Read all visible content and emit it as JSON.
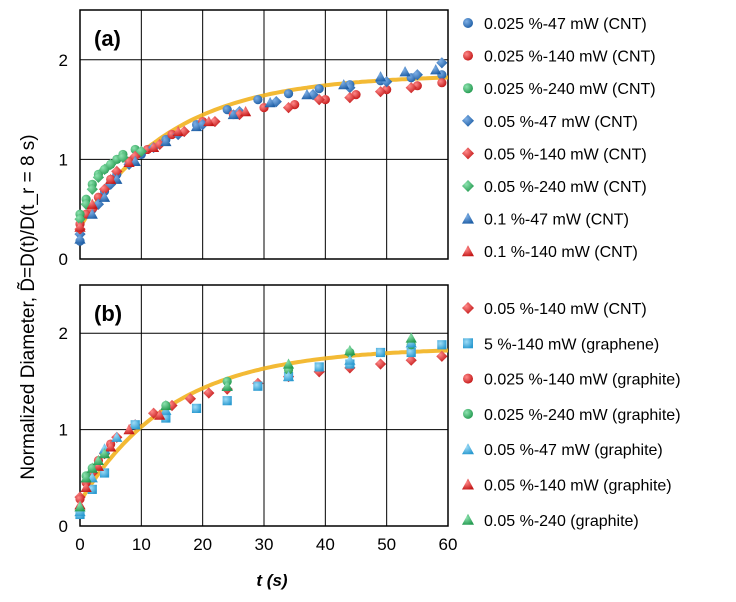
{
  "y_axis_title": "Normalized Diameter, D̃=D(t)/D(t_r = 8 s)",
  "x_axis_title": "t (s)",
  "colors": {
    "blue": "#1f5fa6",
    "red": "#d42020",
    "green": "#2fae5f",
    "cyan": "#33a8de",
    "fit_line": "#f2b21f",
    "grid": "#000000"
  },
  "chart_data": [
    {
      "type": "scatter",
      "panel_label": "(a)",
      "xlabel": "t (s)",
      "ylabel": "Normalized Diameter",
      "xlim": [
        0,
        60
      ],
      "ylim": [
        0,
        2.5
      ],
      "x_ticks": [
        0,
        10,
        20,
        30,
        40,
        50,
        60
      ],
      "y_ticks": [
        0,
        1,
        2
      ],
      "grid": true,
      "legend_position": "right",
      "fit": {
        "name": "fit",
        "color": "#f2b21f",
        "a": 1.85,
        "b": 1.53,
        "tau": 15
      },
      "series": [
        {
          "name": "0.025 %-47 mW (CNT)",
          "marker": "circle",
          "color": "#1f5fa6",
          "x": [
            0,
            2,
            4,
            6,
            8,
            10,
            14,
            19,
            24,
            29,
            34,
            39,
            44,
            49,
            54,
            59
          ],
          "y": [
            0.18,
            0.5,
            0.68,
            0.85,
            0.97,
            1.05,
            1.2,
            1.35,
            1.5,
            1.6,
            1.66,
            1.71,
            1.75,
            1.79,
            1.82,
            1.85
          ]
        },
        {
          "name": "0.025 %-140 mW (CNT)",
          "marker": "circle",
          "color": "#d42020",
          "x": [
            0,
            1,
            3,
            5,
            8,
            11,
            15,
            20,
            25,
            30,
            35,
            40,
            45,
            50,
            55,
            59
          ],
          "y": [
            0.35,
            0.45,
            0.62,
            0.8,
            0.98,
            1.1,
            1.25,
            1.38,
            1.45,
            1.52,
            1.55,
            1.6,
            1.65,
            1.7,
            1.74,
            1.77
          ]
        },
        {
          "name": "0.025 %-240 mW (CNT)",
          "marker": "circle",
          "color": "#2fae5f",
          "x": [
            0,
            1,
            2,
            3,
            4,
            5,
            6,
            7,
            9
          ],
          "y": [
            0.45,
            0.6,
            0.75,
            0.85,
            0.9,
            0.95,
            1.0,
            1.05,
            1.1
          ]
        },
        {
          "name": "0.05 %-47 mW (CNT)",
          "marker": "diamond",
          "color": "#1f5fa6",
          "x": [
            0,
            3,
            5,
            8,
            12,
            16,
            20,
            26,
            32,
            38,
            44,
            50,
            55,
            59
          ],
          "y": [
            0.25,
            0.55,
            0.75,
            0.95,
            1.12,
            1.25,
            1.35,
            1.48,
            1.58,
            1.65,
            1.72,
            1.78,
            1.85,
            1.97
          ]
        },
        {
          "name": "0.05 %-140 mW (CNT)",
          "marker": "diamond",
          "color": "#d42020",
          "x": [
            0,
            2,
            4,
            6,
            9,
            13,
            17,
            22,
            26,
            34,
            39,
            44,
            49,
            54
          ],
          "y": [
            0.3,
            0.5,
            0.7,
            0.88,
            1.03,
            1.15,
            1.28,
            1.38,
            1.45,
            1.52,
            1.6,
            1.62,
            1.68,
            1.72
          ]
        },
        {
          "name": "0.05 %-240 mW (CNT)",
          "marker": "diamond",
          "color": "#2fae5f",
          "x": [
            0,
            1,
            2,
            3,
            4,
            5,
            7,
            10
          ],
          "y": [
            0.4,
            0.55,
            0.7,
            0.82,
            0.9,
            0.95,
            1.02,
            1.08
          ]
        },
        {
          "name": "0.1 %-47 mW (CNT)",
          "marker": "triangle",
          "color": "#1f5fa6",
          "x": [
            0,
            2,
            4,
            6,
            9,
            14,
            19,
            25,
            31,
            37,
            43,
            49,
            53,
            58
          ],
          "y": [
            0.2,
            0.45,
            0.62,
            0.8,
            0.98,
            1.18,
            1.33,
            1.45,
            1.57,
            1.65,
            1.75,
            1.83,
            1.88,
            1.9
          ]
        },
        {
          "name": "0.1 %-140 mW (CNT)",
          "marker": "triangle",
          "color": "#d42020",
          "x": [
            0,
            2,
            5,
            8,
            12,
            16,
            21,
            27
          ],
          "y": [
            0.32,
            0.55,
            0.8,
            0.97,
            1.12,
            1.28,
            1.38,
            1.48
          ]
        }
      ]
    },
    {
      "type": "scatter",
      "panel_label": "(b)",
      "xlabel": "t (s)",
      "ylabel": "Normalized Diameter",
      "xlim": [
        0,
        60
      ],
      "ylim": [
        0,
        2.5
      ],
      "x_ticks": [
        0,
        10,
        20,
        30,
        40,
        50,
        60
      ],
      "y_ticks": [
        0,
        1,
        2
      ],
      "grid": true,
      "legend_position": "right",
      "fit": {
        "name": "fit",
        "color": "#f2b21f",
        "a": 1.85,
        "b": 1.6,
        "tau": 15
      },
      "series": [
        {
          "name": "0.05 %-140 mW (CNT)",
          "marker": "diamond",
          "color": "#d42020",
          "x": [
            0,
            2,
            4,
            6,
            9,
            12,
            15,
            18,
            21,
            24,
            29,
            34,
            39,
            44,
            49,
            54,
            59
          ],
          "y": [
            0.3,
            0.55,
            0.75,
            0.92,
            1.05,
            1.17,
            1.25,
            1.32,
            1.38,
            1.42,
            1.48,
            1.55,
            1.6,
            1.64,
            1.68,
            1.72,
            1.76
          ]
        },
        {
          "name": "5 %-140 mW (graphene)",
          "marker": "square",
          "color": "#33a8de",
          "x": [
            0,
            2,
            4,
            9,
            14,
            19,
            24,
            29,
            34,
            39,
            44,
            49,
            54,
            59
          ],
          "y": [
            0.12,
            0.38,
            0.55,
            1.05,
            1.12,
            1.22,
            1.3,
            1.45,
            1.55,
            1.65,
            1.68,
            1.8,
            1.8,
            1.88
          ]
        },
        {
          "name": "0.025 %-140 mW (graphite)",
          "marker": "circle",
          "color": "#d42020",
          "x": [
            0,
            1,
            3,
            5
          ],
          "y": [
            0.28,
            0.45,
            0.68,
            0.85
          ]
        },
        {
          "name": "0.025 %-240 mW (graphite)",
          "marker": "circle",
          "color": "#2fae5f",
          "x": [
            1,
            2,
            4,
            14,
            24,
            34,
            44,
            54
          ],
          "y": [
            0.52,
            0.6,
            0.75,
            1.25,
            1.5,
            1.62,
            1.8,
            1.88
          ]
        },
        {
          "name": "0.05 %-47 mW (graphite)",
          "marker": "triangle",
          "color": "#33a8de",
          "x": [
            0,
            2,
            4,
            6,
            9,
            14,
            24,
            34,
            44,
            54
          ],
          "y": [
            0.15,
            0.5,
            0.8,
            0.92,
            1.05,
            1.2,
            1.45,
            1.55,
            1.72,
            1.9
          ]
        },
        {
          "name": "0.05 %-140 mW (graphite)",
          "marker": "triangle",
          "color": "#d42020",
          "x": [
            0,
            1,
            3,
            5,
            8,
            13
          ],
          "y": [
            0.22,
            0.4,
            0.62,
            0.82,
            1.0,
            1.15
          ]
        },
        {
          "name": "0.05 %-240 (graphite)",
          "marker": "triangle",
          "color": "#2fae5f",
          "x": [
            0,
            1,
            2,
            3,
            4,
            14,
            24,
            34,
            44,
            54
          ],
          "y": [
            0.2,
            0.5,
            0.6,
            0.68,
            0.75,
            1.25,
            1.45,
            1.68,
            1.82,
            1.95
          ]
        }
      ]
    }
  ]
}
